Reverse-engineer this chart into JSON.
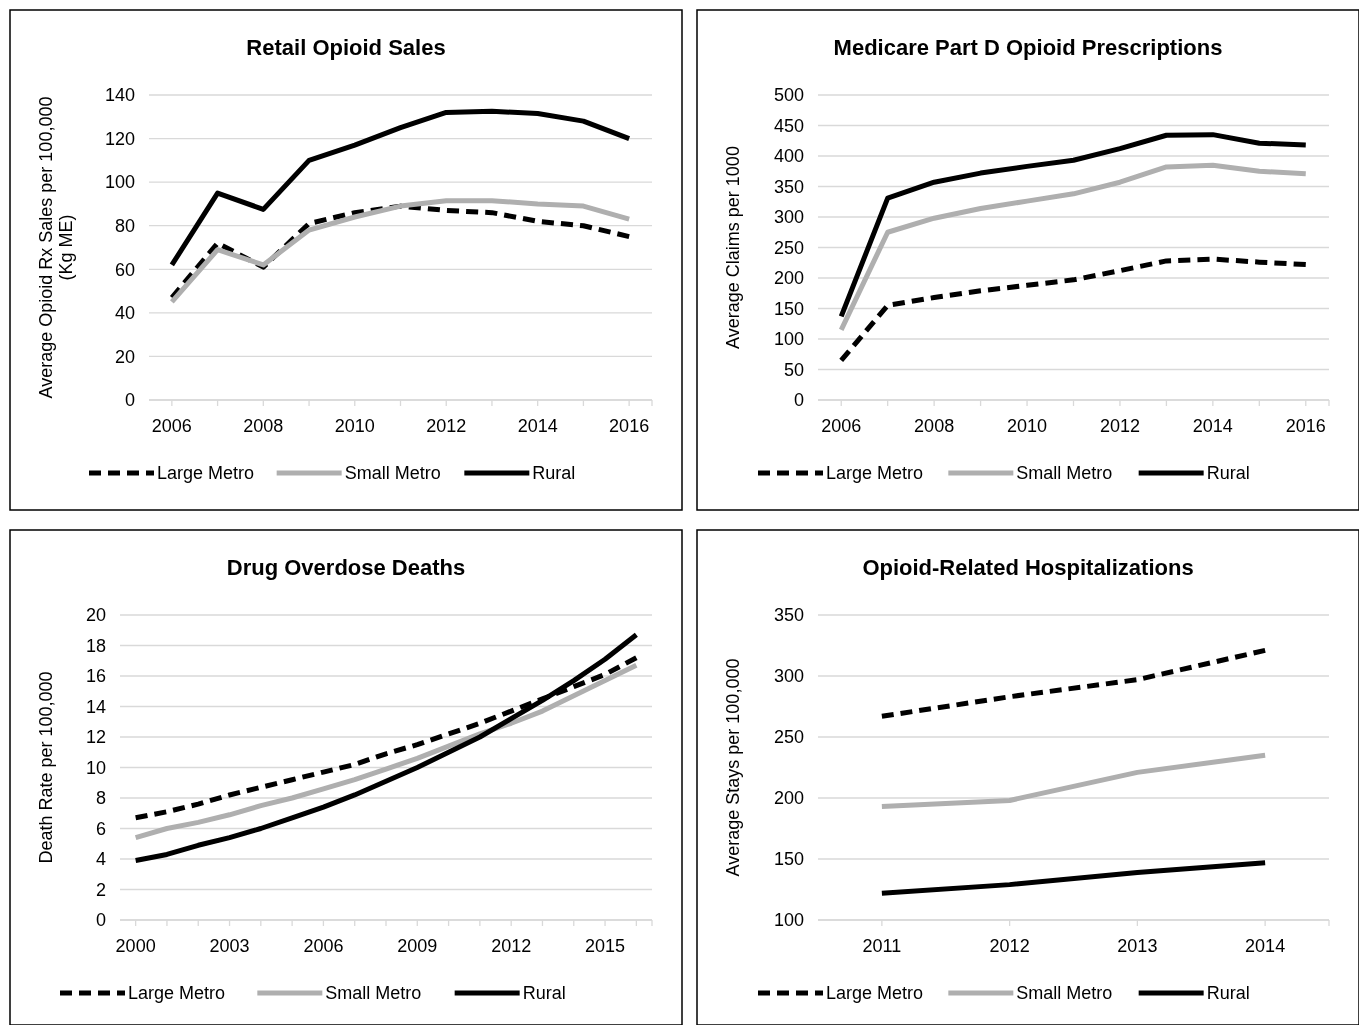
{
  "chart_data": [
    {
      "type": "line",
      "title": "Retail Opioid Sales",
      "ylabel": "Average Opioid Rx Sales per 100,000\n(Kg ME)",
      "categories": [
        "2006",
        null,
        "2008",
        null,
        "2010",
        null,
        "2012",
        null,
        "2014",
        null,
        "2016"
      ],
      "ylim": [
        0,
        140
      ],
      "yticks": [
        0,
        20,
        40,
        60,
        80,
        100,
        120,
        140
      ],
      "grid": "y",
      "legend": "bottom",
      "series": [
        {
          "name": "Large Metro",
          "color": "#000000",
          "line_style": "dashed",
          "values": [
            47,
            72,
            61,
            81,
            86,
            89,
            87,
            86,
            82,
            80,
            75
          ]
        },
        {
          "name": "Small Metro",
          "color": "#afafaf",
          "line_style": "solid",
          "values": [
            45,
            69,
            62,
            78,
            84,
            89,
            91.5,
            91.5,
            90,
            89,
            83
          ]
        },
        {
          "name": "Rural",
          "color": "#000000",
          "line_style": "solid",
          "values": [
            62,
            95,
            87.5,
            110,
            117,
            125,
            132,
            132.5,
            131.5,
            128,
            120
          ]
        }
      ]
    },
    {
      "type": "line",
      "title": "Medicare Part D Opioid Prescriptions",
      "ylabel": "Average Claims per 1000",
      "categories": [
        "2006",
        null,
        "2008",
        null,
        "2010",
        null,
        "2012",
        null,
        "2014",
        null,
        "2016"
      ],
      "ylim": [
        0,
        500
      ],
      "yticks": [
        0,
        50,
        100,
        150,
        200,
        250,
        300,
        350,
        400,
        450,
        500
      ],
      "grid": "y",
      "legend": "bottom",
      "series": [
        {
          "name": "Large Metro",
          "color": "#000000",
          "line_style": "dashed",
          "values": [
            65,
            155,
            168,
            179,
            188,
            197,
            212,
            228,
            231,
            226,
            222
          ]
        },
        {
          "name": "Small Metro",
          "color": "#afafaf",
          "line_style": "solid",
          "values": [
            115,
            275,
            298,
            314,
            326,
            338,
            357,
            382,
            385,
            375,
            371
          ]
        },
        {
          "name": "Rural",
          "color": "#000000",
          "line_style": "solid",
          "values": [
            137,
            331,
            357,
            372,
            383,
            393,
            412,
            434,
            435,
            421,
            418
          ]
        }
      ]
    },
    {
      "type": "line",
      "title": "Drug Overdose Deaths",
      "ylabel": "Death Rate per 100,000",
      "categories": [
        "2000",
        null,
        null,
        "2003",
        null,
        null,
        "2006",
        null,
        null,
        "2009",
        null,
        null,
        "2012",
        null,
        null,
        "2015",
        null
      ],
      "ylim": [
        0,
        20
      ],
      "yticks": [
        0,
        2,
        4,
        6,
        8,
        10,
        12,
        14,
        16,
        18,
        20
      ],
      "grid": "y",
      "legend": "bottom",
      "series": [
        {
          "name": "Large Metro",
          "color": "#000000",
          "line_style": "dashed",
          "values": [
            6.7,
            7.1,
            7.6,
            8.2,
            8.7,
            9.2,
            9.7,
            10.2,
            10.9,
            11.5,
            12.2,
            12.9,
            13.7,
            14.5,
            15.3,
            16.1,
            17.2
          ]
        },
        {
          "name": "Small Metro",
          "color": "#afafaf",
          "line_style": "solid",
          "values": [
            5.4,
            6.0,
            6.4,
            6.9,
            7.5,
            8.0,
            8.6,
            9.2,
            9.9,
            10.6,
            11.4,
            12.2,
            12.9,
            13.7,
            14.7,
            15.7,
            16.7
          ]
        },
        {
          "name": "Rural",
          "color": "#000000",
          "line_style": "solid",
          "values": [
            3.9,
            4.3,
            4.9,
            5.4,
            6.0,
            6.7,
            7.4,
            8.2,
            9.1,
            10.0,
            11.0,
            12.0,
            13.2,
            14.4,
            15.7,
            17.1,
            18.7
          ]
        }
      ]
    },
    {
      "type": "line",
      "title": "Opioid-Related Hospitalizations",
      "ylabel": "Average Stays per 100,000",
      "categories": [
        "2011",
        "2012",
        "2013",
        "2014"
      ],
      "ylim": [
        100,
        350
      ],
      "yticks": [
        100,
        150,
        200,
        250,
        300,
        350
      ],
      "grid": "y",
      "legend": "bottom",
      "series": [
        {
          "name": "Large Metro",
          "color": "#000000",
          "line_style": "dashed",
          "values": [
            267,
            283,
            297,
            321
          ]
        },
        {
          "name": "Small Metro",
          "color": "#afafaf",
          "line_style": "solid",
          "values": [
            193,
            198,
            221,
            235
          ]
        },
        {
          "name": "Rural",
          "color": "#000000",
          "line_style": "solid",
          "values": [
            122,
            129,
            139,
            147
          ]
        }
      ]
    }
  ]
}
